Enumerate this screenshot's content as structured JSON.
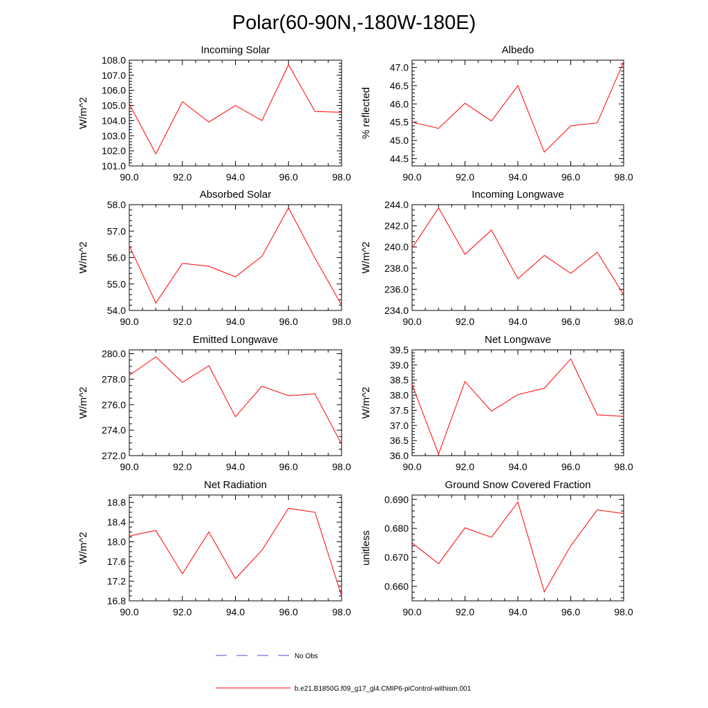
{
  "figure": {
    "title": "Polar(60-90N,-180W-180E)",
    "line_color": "#ff0000",
    "obs_color": "#4a4ad8"
  },
  "legend": {
    "obs_label": "No Obs",
    "model_label": "b.e21.B1850G.f09_g17_gl4.CMIP6-piControl-withism.001"
  },
  "chart_data": [
    {
      "type": "line",
      "title": "Incoming Solar",
      "ylabel": "W/m^2",
      "xlabel": "",
      "x": [
        90,
        91,
        92,
        93,
        94,
        95,
        96,
        97,
        98
      ],
      "series": [
        {
          "name": "b.e21.B1850G.f09_g17_gl4.CMIP6-piControl-withism.001",
          "values": [
            105.1,
            101.8,
            105.25,
            103.9,
            105.0,
            104.0,
            107.7,
            104.6,
            104.55
          ]
        }
      ],
      "xlim": [
        90,
        98
      ],
      "ylim": [
        101.0,
        108.0
      ],
      "xticks": [
        90,
        92,
        94,
        96,
        98
      ],
      "yticks": [
        101,
        102,
        103,
        104,
        105,
        106,
        107,
        108
      ],
      "ydecimals": 1,
      "yminor": 5
    },
    {
      "type": "line",
      "title": "Albedo",
      "ylabel": "% reflected",
      "xlabel": "",
      "x": [
        90,
        91,
        92,
        93,
        94,
        95,
        96,
        97,
        98
      ],
      "series": [
        {
          "name": "b.e21.B1850G.f09_g17_gl4.CMIP6-piControl-withism.001",
          "values": [
            45.5,
            45.33,
            46.02,
            45.53,
            46.5,
            44.68,
            45.4,
            45.48,
            47.15
          ]
        }
      ],
      "xlim": [
        90,
        98
      ],
      "ylim": [
        44.3,
        47.2
      ],
      "xticks": [
        90,
        92,
        94,
        96,
        98
      ],
      "yticks": [
        44.5,
        45.0,
        45.5,
        46.0,
        46.5,
        47.0
      ],
      "ydecimals": 1,
      "yminor": 5
    },
    {
      "type": "line",
      "title": "Absorbed Solar",
      "ylabel": "W/m^2",
      "xlabel": "",
      "x": [
        90,
        91,
        92,
        93,
        94,
        95,
        96,
        97,
        98
      ],
      "series": [
        {
          "name": "b.e21.B1850G.f09_g17_gl4.CMIP6-piControl-withism.001",
          "values": [
            56.45,
            54.28,
            55.78,
            55.67,
            55.27,
            56.05,
            57.88,
            55.98,
            54.2
          ]
        }
      ],
      "xlim": [
        90,
        98
      ],
      "ylim": [
        54.0,
        58.0
      ],
      "xticks": [
        90,
        92,
        94,
        96,
        98
      ],
      "yticks": [
        54,
        55,
        56,
        57,
        58
      ],
      "ydecimals": 1,
      "yminor": 5
    },
    {
      "type": "line",
      "title": "Incoming Longwave",
      "ylabel": "W/m^2",
      "xlabel": "",
      "x": [
        90,
        91,
        92,
        93,
        94,
        95,
        96,
        97,
        98
      ],
      "series": [
        {
          "name": "b.e21.B1850G.f09_g17_gl4.CMIP6-piControl-withism.001",
          "values": [
            239.9,
            243.7,
            239.3,
            241.6,
            237.0,
            239.2,
            237.5,
            239.5,
            235.5
          ]
        }
      ],
      "xlim": [
        90,
        98
      ],
      "ylim": [
        234.0,
        244.0
      ],
      "xticks": [
        90,
        92,
        94,
        96,
        98
      ],
      "yticks": [
        234,
        236,
        238,
        240,
        242,
        244
      ],
      "ydecimals": 1,
      "yminor": 4
    },
    {
      "type": "line",
      "title": "Emitted Longwave",
      "ylabel": "W/m^2",
      "xlabel": "",
      "x": [
        90,
        91,
        92,
        93,
        94,
        95,
        96,
        97,
        98
      ],
      "series": [
        {
          "name": "b.e21.B1850G.f09_g17_gl4.CMIP6-piControl-withism.001",
          "values": [
            278.3,
            279.75,
            277.75,
            279.05,
            275.05,
            277.45,
            276.7,
            276.85,
            272.9
          ]
        }
      ],
      "xlim": [
        90,
        98
      ],
      "ylim": [
        272.0,
        280.3
      ],
      "xticks": [
        90,
        92,
        94,
        96,
        98
      ],
      "yticks": [
        272,
        274,
        276,
        278,
        280
      ],
      "ydecimals": 1,
      "yminor": 4
    },
    {
      "type": "line",
      "title": "Net Longwave",
      "ylabel": "W/m^2",
      "xlabel": "",
      "x": [
        90,
        91,
        92,
        93,
        94,
        95,
        96,
        97,
        98
      ],
      "series": [
        {
          "name": "b.e21.B1850G.f09_g17_gl4.CMIP6-piControl-withism.001",
          "values": [
            38.35,
            36.05,
            38.45,
            37.47,
            38.02,
            38.23,
            39.2,
            37.35,
            37.3
          ]
        }
      ],
      "xlim": [
        90,
        98
      ],
      "ylim": [
        36.0,
        39.5
      ],
      "xticks": [
        90,
        92,
        94,
        96,
        98
      ],
      "yticks": [
        36.0,
        36.5,
        37.0,
        37.5,
        38.0,
        38.5,
        39.0,
        39.5
      ],
      "ydecimals": 1,
      "yminor": 5
    },
    {
      "type": "line",
      "title": "Net Radiation",
      "ylabel": "W/m^2",
      "xlabel": "",
      "x": [
        90,
        91,
        92,
        93,
        94,
        95,
        96,
        97,
        98
      ],
      "series": [
        {
          "name": "b.e21.B1850G.f09_g17_gl4.CMIP6-piControl-withism.001",
          "values": [
            18.12,
            18.23,
            17.35,
            18.2,
            17.25,
            17.83,
            18.68,
            18.6,
            16.9
          ]
        }
      ],
      "xlim": [
        90,
        98
      ],
      "ylim": [
        16.8,
        18.95
      ],
      "xticks": [
        90,
        92,
        94,
        96,
        98
      ],
      "yticks": [
        16.8,
        17.2,
        17.6,
        18.0,
        18.4,
        18.8
      ],
      "ydecimals": 1,
      "yminor": 4
    },
    {
      "type": "line",
      "title": "Ground Snow Covered Fraction",
      "ylabel": "unitless",
      "xlabel": "",
      "x": [
        90,
        91,
        92,
        93,
        94,
        95,
        96,
        97,
        98
      ],
      "series": [
        {
          "name": "b.e21.B1850G.f09_g17_gl4.CMIP6-piControl-withism.001",
          "values": [
            0.675,
            0.6678,
            0.6802,
            0.6769,
            0.6891,
            0.6581,
            0.674,
            0.6864,
            0.6851
          ]
        }
      ],
      "xlim": [
        90,
        98
      ],
      "ylim": [
        0.655,
        0.6915
      ],
      "xticks": [
        90,
        92,
        94,
        96,
        98
      ],
      "yticks": [
        0.66,
        0.67,
        0.68,
        0.69
      ],
      "ydecimals": 3,
      "yminor": 5
    }
  ]
}
